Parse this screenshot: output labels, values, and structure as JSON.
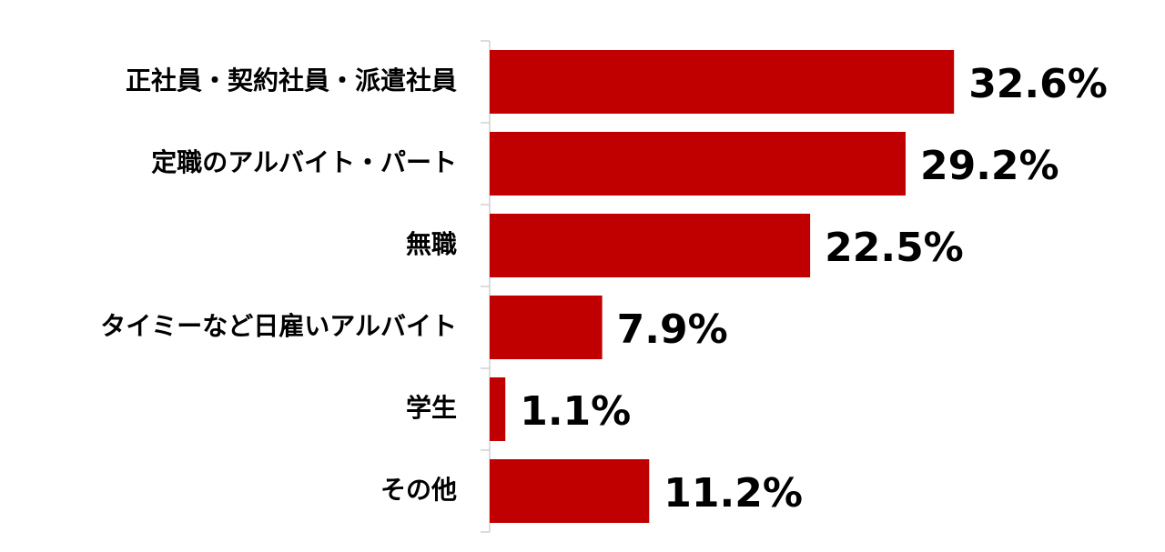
{
  "chart_data": {
    "type": "bar",
    "orientation": "horizontal",
    "categories": [
      "正社員・契約社員・派遣社員",
      "定職のアルバイト・パート",
      "無職",
      "タイミーなど日雇いアルバイト",
      "学生",
      "その他"
    ],
    "values": [
      32.6,
      29.2,
      22.5,
      7.9,
      1.1,
      11.2
    ],
    "value_labels": [
      "32.6%",
      "29.2%",
      "22.5%",
      "7.9%",
      "1.1%",
      "11.2%"
    ],
    "color": "#c00000"
  }
}
